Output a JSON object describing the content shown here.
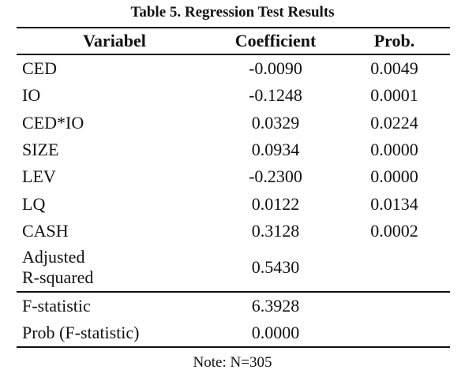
{
  "table": {
    "title": "Table 5. Regression Test Results",
    "headers": {
      "variable": "Variabel",
      "coefficient": "Coefficient",
      "prob": "Prob."
    },
    "rows": [
      {
        "variable": "CED",
        "coefficient": "-0.0090",
        "prob": "0.0049"
      },
      {
        "variable": "IO",
        "coefficient": "-0.1248",
        "prob": "0.0001"
      },
      {
        "variable": "CED*IO",
        "coefficient": "0.0329",
        "prob": "0.0224"
      },
      {
        "variable": "SIZE",
        "coefficient": "0.0934",
        "prob": "0.0000"
      },
      {
        "variable": "LEV",
        "coefficient": "-0.2300",
        "prob": "0.0000"
      },
      {
        "variable": "LQ",
        "coefficient": "0.0122",
        "prob": "0.0134"
      },
      {
        "variable": "CASH",
        "coefficient": "0.3128",
        "prob": "0.0002"
      }
    ],
    "adjusted_r_squared": {
      "label_line1": "Adjusted",
      "label_line2": "R-squared",
      "value": "0.5430"
    },
    "f_statistic": {
      "label": "F-statistic",
      "value": "6.3928"
    },
    "prob_f_statistic": {
      "label": "Prob (F-statistic)",
      "value": "0.0000"
    },
    "note": "Note: N=305"
  }
}
